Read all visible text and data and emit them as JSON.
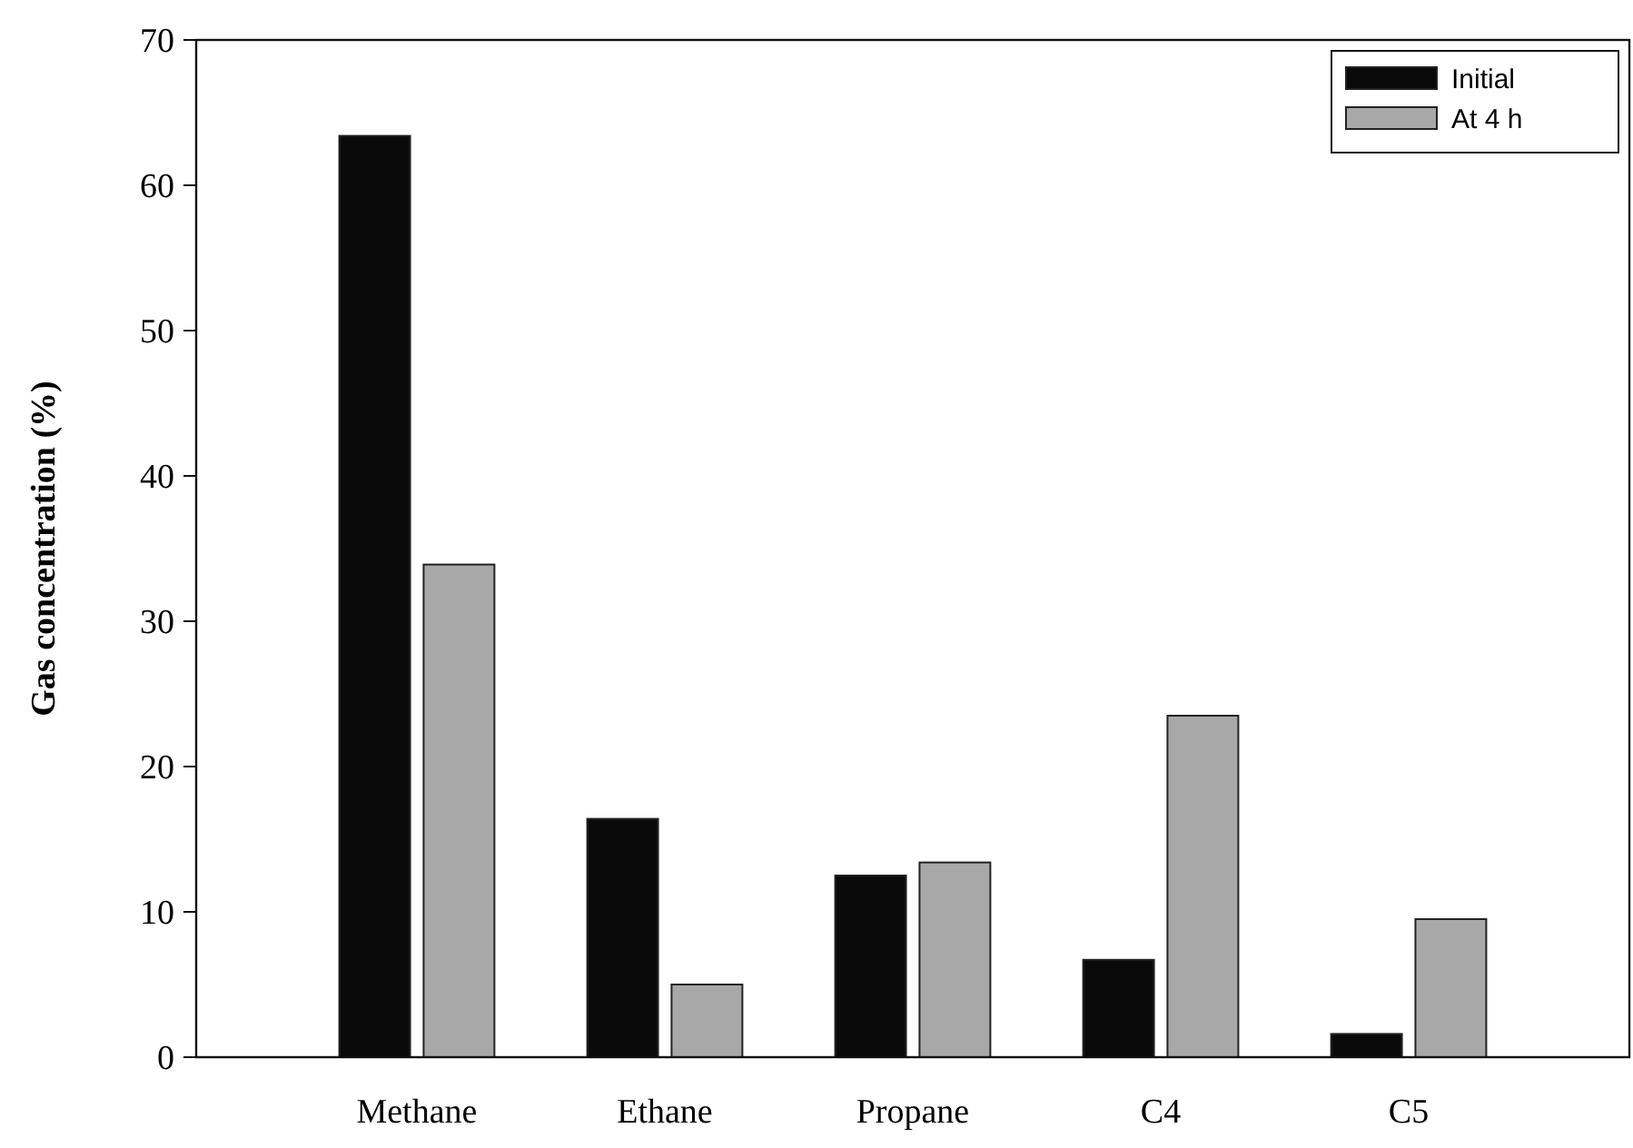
{
  "chart_data": {
    "type": "bar",
    "ylabel": "Gas concentration (%)",
    "categories": [
      "Methane",
      "Ethane",
      "Propane",
      "C4",
      "C5"
    ],
    "series": [
      {
        "name": "Initial",
        "color": "#0a0a0a",
        "values": [
          63.4,
          16.4,
          12.5,
          6.7,
          1.6
        ]
      },
      {
        "name": "At 4 h",
        "color": "#a8a8a8",
        "values": [
          33.9,
          5,
          13.4,
          23.5,
          9.5
        ]
      }
    ],
    "ylim": [
      0,
      70
    ],
    "yticks": [
      0,
      10,
      20,
      30,
      40,
      50,
      60,
      70
    ],
    "grid": false,
    "legend": "top right"
  }
}
